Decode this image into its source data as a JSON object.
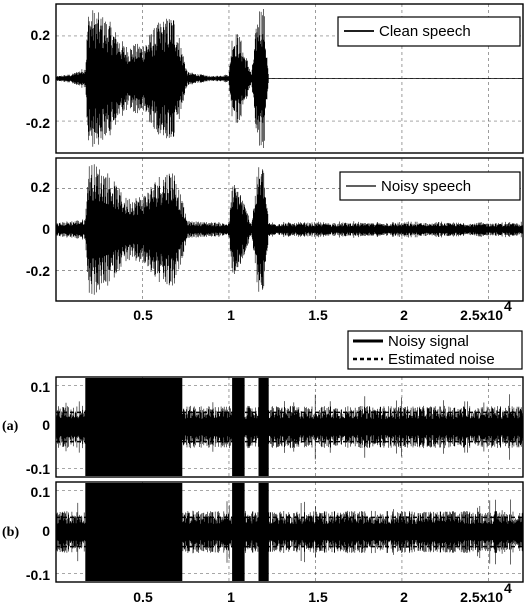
{
  "chart_data": [
    {
      "type": "line",
      "panel": "top",
      "xlim": [
        0,
        27000
      ],
      "ylim": [
        -0.35,
        0.35
      ],
      "grid": true,
      "xticks": [],
      "yticks": [
        0.2,
        0,
        -0.2
      ],
      "ytick_labels": [
        "0.2",
        "0",
        "-0.2"
      ],
      "legend_location": "top-right",
      "series": [
        {
          "name": "Clean speech",
          "style": "solid",
          "envelope_x": [
            0,
            900,
            1700,
            1850,
            2000,
            2400,
            3000,
            4000,
            5000,
            6000,
            6800,
            7100,
            7600,
            9000,
            10000,
            10200,
            10600,
            10900,
            11100,
            11300,
            11700,
            12000,
            12300,
            27000
          ],
          "envelope_amp": [
            0.01,
            0.02,
            0.05,
            0.3,
            0.32,
            0.3,
            0.27,
            0.15,
            0.16,
            0.26,
            0.29,
            0.2,
            0.03,
            0.01,
            0.02,
            0.22,
            0.2,
            0.12,
            0.08,
            0.02,
            0.33,
            0.33,
            0.0,
            0.0
          ]
        }
      ]
    },
    {
      "type": "line",
      "panel": "middle",
      "xlim": [
        0,
        27000
      ],
      "ylim": [
        -0.35,
        0.35
      ],
      "grid": true,
      "xticks": [
        5000,
        10000,
        15000,
        20000,
        25000
      ],
      "xtick_labels": [
        "0.5",
        "1",
        "1.5",
        "2",
        "2.5x10"
      ],
      "xtick_exponent": "4",
      "yticks": [
        0.2,
        0,
        -0.2
      ],
      "ytick_labels": [
        "0.2",
        "0",
        "-0.2"
      ],
      "legend_location": "top-right",
      "series": [
        {
          "name": "Noisy speech",
          "style": "solid",
          "noise_floor": 0.03,
          "envelope_x": [
            0,
            1700,
            1850,
            2000,
            2400,
            3000,
            4000,
            5000,
            6000,
            6800,
            7100,
            7600,
            10000,
            10200,
            10600,
            10900,
            11300,
            11700,
            12000,
            12300,
            27000
          ],
          "envelope_amp": [
            0.03,
            0.05,
            0.3,
            0.32,
            0.3,
            0.27,
            0.15,
            0.16,
            0.26,
            0.29,
            0.2,
            0.04,
            0.03,
            0.22,
            0.2,
            0.12,
            0.03,
            0.3,
            0.3,
            0.03,
            0.03
          ]
        }
      ]
    },
    {
      "type": "line",
      "panel": "a",
      "panel_label": "(a)",
      "xlim": [
        0,
        27000
      ],
      "ylim": [
        -0.12,
        0.12
      ],
      "grid": true,
      "xticks": [],
      "yticks": [
        0.1,
        0,
        -0.1
      ],
      "ytick_labels": [
        "0.1",
        "0",
        "-0.1"
      ],
      "legend_location": "above-right",
      "series": [
        {
          "name": "Noisy signal",
          "style": "solid",
          "noise_floor": 0.035,
          "saturated_regions": [
            [
              1700,
              7300
            ],
            [
              10200,
              10900
            ],
            [
              11700,
              12300
            ]
          ]
        },
        {
          "name": "Estimated noise",
          "style": "dashed",
          "level": 0.035
        }
      ]
    },
    {
      "type": "line",
      "panel": "b",
      "panel_label": "(b)",
      "xlim": [
        0,
        27000
      ],
      "ylim": [
        -0.12,
        0.12
      ],
      "grid": true,
      "xticks": [
        5000,
        10000,
        15000,
        20000,
        25000
      ],
      "xtick_labels": [
        "0.5",
        "1",
        "1.5",
        "2",
        "2.5x10"
      ],
      "xtick_exponent": "4",
      "yticks": [
        0.1,
        0,
        -0.1
      ],
      "ytick_labels": [
        "0.1",
        "0",
        "-0.1"
      ],
      "series": [
        {
          "name": "Noisy signal",
          "style": "solid",
          "noise_floor": 0.035,
          "saturated_regions": [
            [
              1700,
              7300
            ],
            [
              10200,
              10900
            ],
            [
              11700,
              12300
            ]
          ]
        },
        {
          "name": "Estimated noise",
          "style": "dashed",
          "level": 0.035
        }
      ]
    }
  ]
}
